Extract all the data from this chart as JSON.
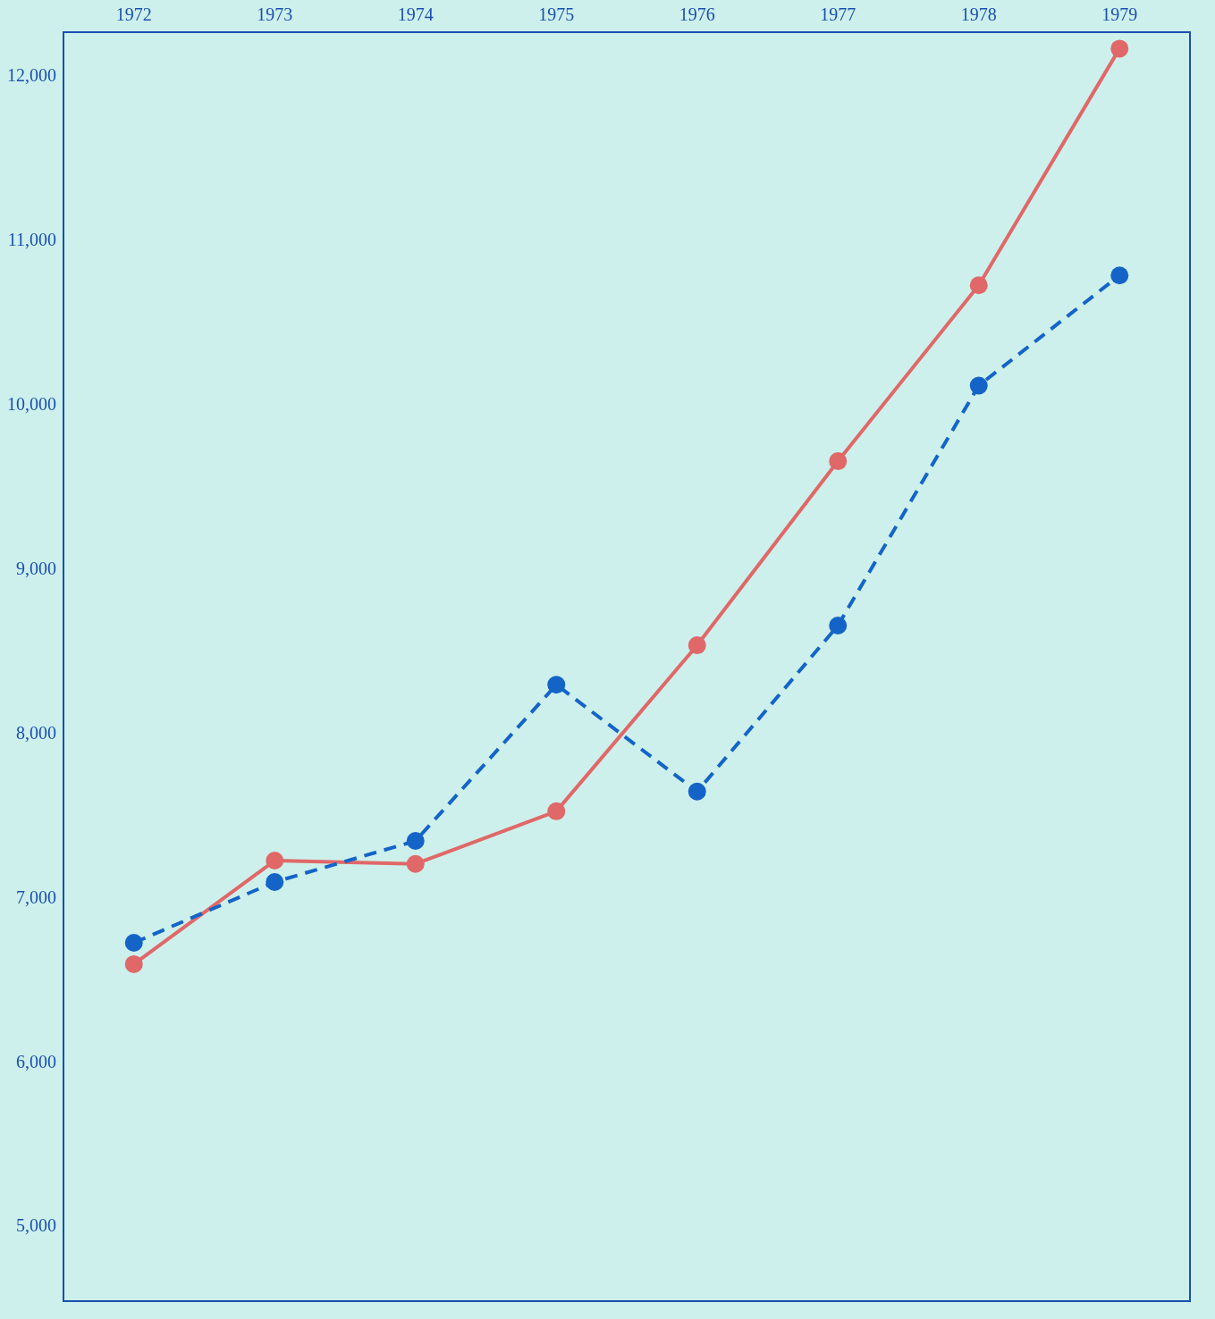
{
  "chart_data": {
    "type": "line",
    "categories": [
      "1972",
      "1973",
      "1974",
      "1975",
      "1976",
      "1977",
      "1978",
      "1979"
    ],
    "series": [
      {
        "color": "#1464c8",
        "line_style": "dashed",
        "values": [
          6730,
          7100,
          7350,
          8300,
          7650,
          8660,
          10120,
          10790
        ]
      },
      {
        "color": "#e06868",
        "line_style": "solid",
        "values": [
          6600,
          7230,
          7210,
          7530,
          8540,
          9660,
          10730,
          12170
        ]
      }
    ],
    "ylim": [
      4550,
      12270
    ],
    "yticks": [
      {
        "value": 5000,
        "label": "5,000"
      },
      {
        "value": 6000,
        "label": "6,000"
      },
      {
        "value": 7000,
        "label": "7,000"
      },
      {
        "value": 8000,
        "label": "8,000"
      },
      {
        "value": 9000,
        "label": "9,000"
      },
      {
        "value": 10000,
        "label": "10,000"
      },
      {
        "value": 11000,
        "label": "11,000"
      },
      {
        "value": 12000,
        "label": "12,000"
      }
    ],
    "marker": "circle",
    "legend": false,
    "grid": false
  }
}
